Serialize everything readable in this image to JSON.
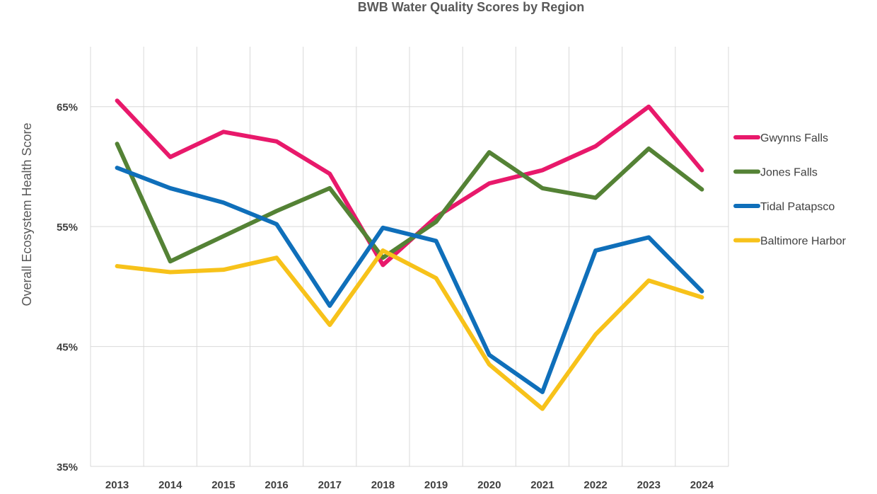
{
  "chart_data": {
    "type": "line",
    "title": "BWB Water Quality Scores by Region",
    "xlabel": "",
    "ylabel": "Overall Ecosystem Health Score",
    "x": [
      "2013",
      "2014",
      "2015",
      "2016",
      "2017",
      "2018",
      "2019",
      "2020",
      "2021",
      "2022",
      "2023",
      "2024"
    ],
    "ylim": [
      35,
      70
    ],
    "yticks": [
      35,
      45,
      55,
      65
    ],
    "ytick_labels": [
      "35%",
      "45%",
      "55%",
      "65%"
    ],
    "grid": true,
    "legend_position": "right",
    "series": [
      {
        "name": "Gwynns Falls",
        "color": "#e8196b",
        "values": [
          65.5,
          60.8,
          62.9,
          62.1,
          59.4,
          51.8,
          55.8,
          58.6,
          59.7,
          61.7,
          65.0,
          59.7
        ]
      },
      {
        "name": "Jones Falls",
        "color": "#548235",
        "values": [
          61.9,
          52.1,
          54.2,
          56.3,
          58.2,
          52.4,
          55.4,
          61.2,
          58.2,
          57.4,
          61.5,
          58.1
        ]
      },
      {
        "name": "Tidal Patapsco",
        "color": "#0f6fba",
        "values": [
          59.9,
          58.2,
          57.0,
          55.2,
          48.4,
          54.9,
          53.8,
          44.3,
          41.2,
          53.0,
          54.1,
          49.6
        ]
      },
      {
        "name": "Baltimore Harbor",
        "color": "#f7c21a",
        "values": [
          51.7,
          51.2,
          51.4,
          52.4,
          46.8,
          53.0,
          50.7,
          43.5,
          39.8,
          46.0,
          50.5,
          49.1
        ]
      }
    ]
  }
}
